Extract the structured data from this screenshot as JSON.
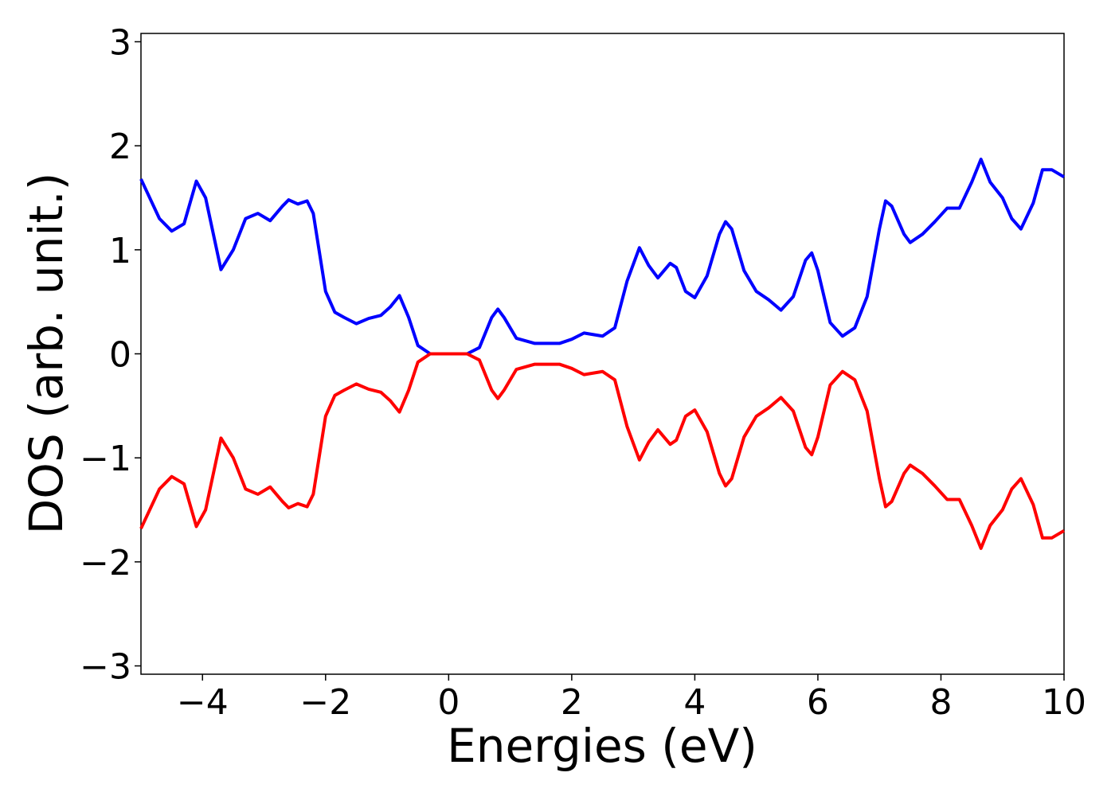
{
  "chart_data": {
    "type": "line",
    "xlabel": "Energies (eV)",
    "ylabel": "DOS (arb. unit.)",
    "x": [
      -5,
      -4.7,
      -4.5,
      -4.3,
      -4.1,
      -3.95,
      -3.7,
      -3.5,
      -3.3,
      -3.1,
      -2.9,
      -2.7,
      -2.6,
      -2.45,
      -2.3,
      -2.2,
      -2.0,
      -1.85,
      -1.7,
      -1.5,
      -1.3,
      -1.1,
      -0.95,
      -0.8,
      -0.65,
      -0.5,
      -0.3,
      0,
      0.3,
      0.5,
      0.7,
      0.8,
      0.9,
      1.1,
      1.4,
      1.8,
      2.0,
      2.2,
      2.5,
      2.7,
      2.9,
      3.1,
      3.25,
      3.4,
      3.6,
      3.7,
      3.85,
      4.0,
      4.2,
      4.4,
      4.5,
      4.6,
      4.8,
      5.0,
      5.2,
      5.4,
      5.6,
      5.8,
      5.9,
      6.0,
      6.2,
      6.4,
      6.6,
      6.8,
      7.0,
      7.1,
      7.2,
      7.4,
      7.5,
      7.7,
      7.9,
      8.1,
      8.3,
      8.5,
      8.65,
      8.8,
      9.0,
      9.15,
      9.3,
      9.5,
      9.65,
      9.8,
      10
    ],
    "series": [
      {
        "color": "#0000ff",
        "values": [
          1.68,
          1.3,
          1.18,
          1.25,
          1.66,
          1.5,
          0.81,
          1.0,
          1.3,
          1.35,
          1.28,
          1.42,
          1.48,
          1.44,
          1.47,
          1.35,
          0.6,
          0.4,
          0.35,
          0.29,
          0.34,
          0.37,
          0.45,
          0.56,
          0.35,
          0.08,
          0.0,
          0,
          0,
          0.06,
          0.35,
          0.43,
          0.35,
          0.15,
          0.1,
          0.1,
          0.14,
          0.2,
          0.17,
          0.25,
          0.7,
          1.02,
          0.85,
          0.73,
          0.87,
          0.83,
          0.6,
          0.54,
          0.75,
          1.15,
          1.27,
          1.2,
          0.8,
          0.6,
          0.52,
          0.42,
          0.55,
          0.9,
          0.97,
          0.8,
          0.3,
          0.17,
          0.25,
          0.55,
          1.2,
          1.47,
          1.42,
          1.15,
          1.07,
          1.15,
          1.27,
          1.4,
          1.4,
          1.65,
          1.87,
          1.65,
          1.5,
          1.3,
          1.2,
          1.45,
          1.77,
          1.77,
          1.7
        ]
      },
      {
        "color": "#ff0000",
        "values": [
          -1.68,
          -1.3,
          -1.18,
          -1.25,
          -1.66,
          -1.5,
          -0.81,
          -1.0,
          -1.3,
          -1.35,
          -1.28,
          -1.42,
          -1.48,
          -1.44,
          -1.47,
          -1.35,
          -0.6,
          -0.4,
          -0.35,
          -0.29,
          -0.34,
          -0.37,
          -0.45,
          -0.56,
          -0.35,
          -0.08,
          0.0,
          0,
          0,
          -0.06,
          -0.35,
          -0.43,
          -0.35,
          -0.15,
          -0.1,
          -0.1,
          -0.14,
          -0.2,
          -0.17,
          -0.25,
          -0.7,
          -1.02,
          -0.85,
          -0.73,
          -0.87,
          -0.83,
          -0.6,
          -0.54,
          -0.75,
          -1.15,
          -1.27,
          -1.2,
          -0.8,
          -0.6,
          -0.52,
          -0.42,
          -0.55,
          -0.9,
          -0.97,
          -0.8,
          -0.3,
          -0.17,
          -0.25,
          -0.55,
          -1.2,
          -1.47,
          -1.42,
          -1.15,
          -1.07,
          -1.15,
          -1.27,
          -1.4,
          -1.4,
          -1.65,
          -1.87,
          -1.65,
          -1.5,
          -1.3,
          -1.2,
          -1.45,
          -1.77,
          -1.77,
          -1.7
        ]
      }
    ],
    "xlim": [
      -5,
      10
    ],
    "xticks": [
      {
        "value": -4,
        "label": "−4"
      },
      {
        "value": -2,
        "label": "−2"
      },
      0,
      2,
      4,
      6,
      8,
      10
    ],
    "ylim": [
      -3.08,
      3.08
    ],
    "yticks": [
      {
        "value": -3,
        "label": "−3"
      },
      {
        "value": -2,
        "label": "−2"
      },
      {
        "value": -1,
        "label": "−1"
      },
      0,
      1,
      2,
      3
    ],
    "grid": false
  }
}
